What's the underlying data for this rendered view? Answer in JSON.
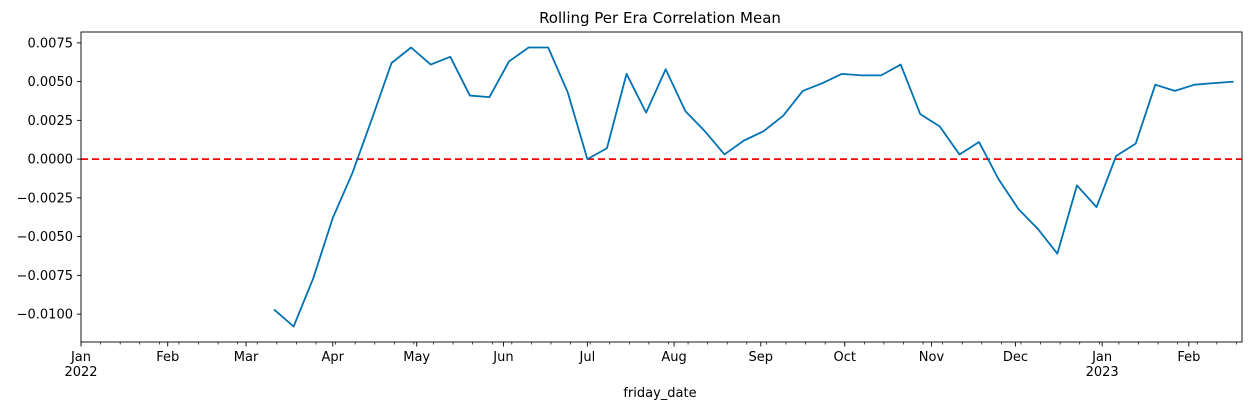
{
  "chart_data": {
    "type": "line",
    "title": "Rolling Per Era Correlation Mean",
    "xlabel": "friday_date",
    "ylabel": "",
    "x_range": [
      "2022-01-01",
      "2023-02-20"
    ],
    "ylim": [
      -0.0118,
      0.0082
    ],
    "yticks": [
      -0.01,
      -0.0075,
      -0.005,
      -0.0025,
      0.0,
      0.0025,
      0.005,
      0.0075
    ],
    "ytick_labels": [
      "−0.0100",
      "−0.0075",
      "−0.0050",
      "−0.0025",
      "0.0000",
      "0.0025",
      "0.0050",
      "0.0075"
    ],
    "xticks": [
      {
        "date": "2022-01-01",
        "label": "Jan",
        "sublabel": "2022"
      },
      {
        "date": "2022-02-01",
        "label": "Feb",
        "sublabel": ""
      },
      {
        "date": "2022-03-01",
        "label": "Mar",
        "sublabel": ""
      },
      {
        "date": "2022-04-01",
        "label": "Apr",
        "sublabel": ""
      },
      {
        "date": "2022-05-01",
        "label": "May",
        "sublabel": ""
      },
      {
        "date": "2022-06-01",
        "label": "Jun",
        "sublabel": ""
      },
      {
        "date": "2022-07-01",
        "label": "Jul",
        "sublabel": ""
      },
      {
        "date": "2022-08-01",
        "label": "Aug",
        "sublabel": ""
      },
      {
        "date": "2022-09-01",
        "label": "Sep",
        "sublabel": ""
      },
      {
        "date": "2022-10-01",
        "label": "Oct",
        "sublabel": ""
      },
      {
        "date": "2022-11-01",
        "label": "Nov",
        "sublabel": ""
      },
      {
        "date": "2022-12-01",
        "label": "Dec",
        "sublabel": ""
      },
      {
        "date": "2023-01-01",
        "label": "Jan",
        "sublabel": "2023"
      },
      {
        "date": "2023-02-01",
        "label": "Feb",
        "sublabel": ""
      }
    ],
    "series": [
      {
        "color": "#0072B2",
        "x": [
          "2022-03-11",
          "2022-03-18",
          "2022-03-25",
          "2022-04-01",
          "2022-04-08",
          "2022-04-15",
          "2022-04-22",
          "2022-04-29",
          "2022-05-06",
          "2022-05-13",
          "2022-05-20",
          "2022-05-27",
          "2022-06-03",
          "2022-06-10",
          "2022-06-17",
          "2022-06-24",
          "2022-07-01",
          "2022-07-08",
          "2022-07-15",
          "2022-07-22",
          "2022-07-29",
          "2022-08-05",
          "2022-08-12",
          "2022-08-19",
          "2022-08-26",
          "2022-09-02",
          "2022-09-09",
          "2022-09-16",
          "2022-09-23",
          "2022-09-30",
          "2022-10-07",
          "2022-10-14",
          "2022-10-21",
          "2022-10-28",
          "2022-11-04",
          "2022-11-11",
          "2022-11-18",
          "2022-11-25",
          "2022-12-02",
          "2022-12-09",
          "2022-12-16",
          "2022-12-23",
          "2022-12-30",
          "2023-01-06",
          "2023-01-13",
          "2023-01-20",
          "2023-01-27",
          "2023-02-03",
          "2023-02-10",
          "2023-02-17"
        ],
        "values": [
          -0.0097,
          -0.0108,
          -0.0077,
          -0.0038,
          -0.0009,
          0.0026,
          0.0062,
          0.0072,
          0.0061,
          0.0066,
          0.0041,
          0.004,
          0.0063,
          0.0072,
          0.0072,
          0.0043,
          0.0,
          0.0007,
          0.0055,
          0.003,
          0.0058,
          0.0031,
          0.0018,
          0.0003,
          0.0012,
          0.0018,
          0.0028,
          0.0044,
          0.0049,
          0.0055,
          0.0054,
          0.0054,
          0.0061,
          0.0029,
          0.0021,
          0.0003,
          0.0011,
          -0.0013,
          -0.0032,
          -0.0045,
          -0.0061,
          -0.0017,
          -0.0031,
          0.0002,
          0.001,
          0.0048,
          0.0044,
          0.0048,
          0.0049,
          0.005
        ]
      }
    ],
    "reference_line": {
      "y": 0.0,
      "color": "#ff0000",
      "style": "dashed"
    },
    "grid": false,
    "legend": "none"
  }
}
